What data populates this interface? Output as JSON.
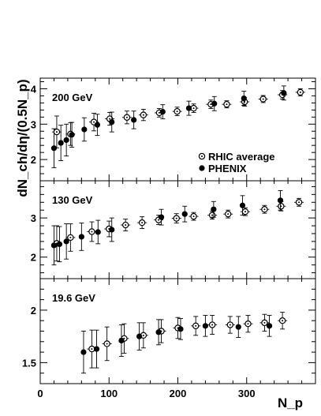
{
  "chart_data": {
    "type": "scatter",
    "ylabel": "dN_ch/dη/(0.5N_p)",
    "xlabel": "N_p",
    "xlim": [
      0,
      400
    ],
    "x_ticks": [
      "0",
      "100",
      "200",
      "300"
    ],
    "legend": {
      "placement": "inside top panel, lower-right",
      "entries": [
        "RHIC average",
        "PHENIX"
      ]
    },
    "series_styles": {
      "RHIC average": "open circle with center dot",
      "PHENIX": "filled circle"
    },
    "panels": [
      {
        "label": "200 GeV",
        "ylim": [
          1.4,
          4.3
        ],
        "y_ticks": [
          "2",
          "3",
          "4"
        ],
        "series": [
          {
            "name": "RHIC average",
            "points": [
              {
                "x": 24,
                "y": 2.78,
                "err": 0.45
              },
              {
                "x": 44,
                "y": 2.72,
                "err": 0.32
              },
              {
                "x": 78,
                "y": 3.06,
                "err": 0.25
              },
              {
                "x": 101,
                "y": 3.15,
                "err": 0.18
              },
              {
                "x": 126,
                "y": 3.19,
                "err": 0.18
              },
              {
                "x": 150,
                "y": 3.26,
                "err": 0.16
              },
              {
                "x": 173,
                "y": 3.32,
                "err": 0.12
              },
              {
                "x": 199,
                "y": 3.36,
                "err": 0.12
              },
              {
                "x": 223,
                "y": 3.45,
                "err": 0.12
              },
              {
                "x": 248,
                "y": 3.56,
                "err": 0.12
              },
              {
                "x": 271,
                "y": 3.56,
                "err": 0.1
              },
              {
                "x": 297,
                "y": 3.63,
                "err": 0.12
              },
              {
                "x": 324,
                "y": 3.71,
                "err": 0.1
              },
              {
                "x": 352,
                "y": 3.83,
                "err": 0.12
              },
              {
                "x": 378,
                "y": 3.9,
                "err": 0.1
              }
            ]
          },
          {
            "name": "PHENIX",
            "points": [
              {
                "x": 20,
                "y": 2.32,
                "err": 0.55
              },
              {
                "x": 30,
                "y": 2.47,
                "err": 0.5
              },
              {
                "x": 38,
                "y": 2.55,
                "err": 0.45
              },
              {
                "x": 46,
                "y": 2.7,
                "err": 0.35
              },
              {
                "x": 64,
                "y": 2.85,
                "err": 0.33
              },
              {
                "x": 83,
                "y": 2.98,
                "err": 0.3
              },
              {
                "x": 104,
                "y": 3.06,
                "err": 0.28
              },
              {
                "x": 136,
                "y": 3.12,
                "err": 0.25
              },
              {
                "x": 178,
                "y": 3.35,
                "err": 0.2
              },
              {
                "x": 216,
                "y": 3.45,
                "err": 0.2
              },
              {
                "x": 253,
                "y": 3.58,
                "err": 0.2
              },
              {
                "x": 296,
                "y": 3.73,
                "err": 0.2
              },
              {
                "x": 354,
                "y": 3.88,
                "err": 0.2
              }
            ]
          }
        ]
      },
      {
        "label": "130 GeV",
        "ylim": [
          1.45,
          3.95
        ],
        "y_ticks": [
          "2",
          "3"
        ],
        "series": [
          {
            "name": "RHIC average",
            "points": [
              {
                "x": 24,
                "y": 2.35,
                "err": 0.45
              },
              {
                "x": 44,
                "y": 2.5,
                "err": 0.35
              },
              {
                "x": 75,
                "y": 2.65,
                "err": 0.25
              },
              {
                "x": 100,
                "y": 2.72,
                "err": 0.2
              },
              {
                "x": 124,
                "y": 2.82,
                "err": 0.15
              },
              {
                "x": 148,
                "y": 2.88,
                "err": 0.15
              },
              {
                "x": 172,
                "y": 2.95,
                "err": 0.12
              },
              {
                "x": 198,
                "y": 2.99,
                "err": 0.12
              },
              {
                "x": 223,
                "y": 3.04,
                "err": 0.1
              },
              {
                "x": 250,
                "y": 3.07,
                "err": 0.1
              },
              {
                "x": 273,
                "y": 3.1,
                "err": 0.1
              },
              {
                "x": 298,
                "y": 3.16,
                "err": 0.1
              },
              {
                "x": 326,
                "y": 3.22,
                "err": 0.1
              },
              {
                "x": 350,
                "y": 3.3,
                "err": 0.12
              },
              {
                "x": 376,
                "y": 3.4,
                "err": 0.1
              }
            ]
          },
          {
            "name": "PHENIX",
            "points": [
              {
                "x": 20,
                "y": 2.3,
                "err": 0.5
              },
              {
                "x": 28,
                "y": 2.33,
                "err": 0.45
              },
              {
                "x": 38,
                "y": 2.4,
                "err": 0.45
              },
              {
                "x": 60,
                "y": 2.52,
                "err": 0.35
              },
              {
                "x": 84,
                "y": 2.64,
                "err": 0.3
              },
              {
                "x": 104,
                "y": 2.7,
                "err": 0.3
              },
              {
                "x": 176,
                "y": 3.02,
                "err": 0.2
              },
              {
                "x": 210,
                "y": 3.1,
                "err": 0.2
              },
              {
                "x": 252,
                "y": 3.22,
                "err": 0.2
              },
              {
                "x": 294,
                "y": 3.32,
                "err": 0.25
              },
              {
                "x": 349,
                "y": 3.45,
                "err": 0.25
              }
            ]
          }
        ]
      },
      {
        "label": "19.6 GeV",
        "ylim": [
          1.3,
          2.3
        ],
        "y_ticks": [
          "1.5",
          "2"
        ],
        "series": [
          {
            "name": "RHIC average",
            "points": [
              {
                "x": 75,
                "y": 1.63,
                "err": 0.18
              },
              {
                "x": 97,
                "y": 1.68,
                "err": 0.16
              },
              {
                "x": 122,
                "y": 1.73,
                "err": 0.14
              },
              {
                "x": 150,
                "y": 1.76,
                "err": 0.12
              },
              {
                "x": 176,
                "y": 1.8,
                "err": 0.11
              },
              {
                "x": 200,
                "y": 1.83,
                "err": 0.1
              },
              {
                "x": 226,
                "y": 1.85,
                "err": 0.09
              },
              {
                "x": 250,
                "y": 1.86,
                "err": 0.09
              },
              {
                "x": 276,
                "y": 1.86,
                "err": 0.08
              },
              {
                "x": 302,
                "y": 1.87,
                "err": 0.08
              },
              {
                "x": 326,
                "y": 1.88,
                "err": 0.08
              },
              {
                "x": 352,
                "y": 1.9,
                "err": 0.08
              }
            ]
          },
          {
            "name": "PHENIX",
            "points": [
              {
                "x": 63,
                "y": 1.6,
                "err": 0.2
              },
              {
                "x": 82,
                "y": 1.63,
                "err": 0.18
              },
              {
                "x": 118,
                "y": 1.71,
                "err": 0.15
              },
              {
                "x": 144,
                "y": 1.75,
                "err": 0.13
              },
              {
                "x": 172,
                "y": 1.79,
                "err": 0.12
              },
              {
                "x": 204,
                "y": 1.82,
                "err": 0.1
              },
              {
                "x": 240,
                "y": 1.85,
                "err": 0.1
              },
              {
                "x": 288,
                "y": 1.84,
                "err": 0.1
              },
              {
                "x": 333,
                "y": 1.85,
                "err": 0.1
              }
            ]
          }
        ]
      }
    ]
  }
}
